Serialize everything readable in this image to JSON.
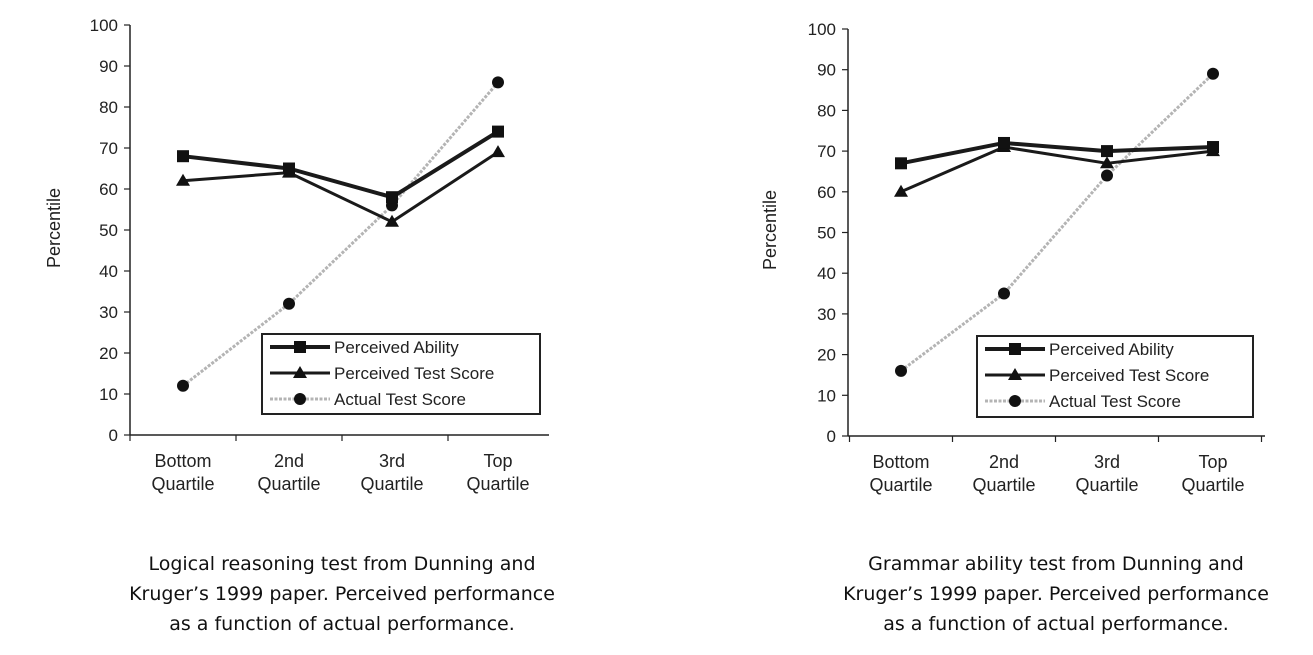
{
  "chart_data": [
    {
      "type": "line",
      "ylabel": "Percentile",
      "ylim": [
        0,
        100
      ],
      "yticks": [
        "0",
        "10",
        "20",
        "30",
        "40",
        "50",
        "60",
        "70",
        "80",
        "90",
        "100"
      ],
      "categories": [
        [
          "Bottom",
          "Quartile"
        ],
        [
          "2nd",
          "Quartile"
        ],
        [
          "3rd",
          "Quartile"
        ],
        [
          "Top",
          "Quartile"
        ]
      ],
      "series": [
        {
          "name": "Perceived Ability",
          "marker": "square",
          "values": [
            68,
            65,
            58,
            74
          ]
        },
        {
          "name": "Perceived Test Score",
          "marker": "triangle",
          "values": [
            62,
            64,
            52,
            69
          ]
        },
        {
          "name": "Actual Test Score",
          "marker": "circle",
          "values": [
            12,
            32,
            56,
            86
          ]
        }
      ],
      "legend_position": "bottom-right",
      "grid": false
    },
    {
      "type": "line",
      "ylabel": "Percentile",
      "ylim": [
        0,
        100
      ],
      "yticks": [
        "0",
        "10",
        "20",
        "30",
        "40",
        "50",
        "60",
        "70",
        "80",
        "90",
        "100"
      ],
      "categories": [
        [
          "Bottom",
          "Quartile"
        ],
        [
          "2nd",
          "Quartile"
        ],
        [
          "3rd",
          "Quartile"
        ],
        [
          "Top",
          "Quartile"
        ]
      ],
      "series": [
        {
          "name": "Perceived Ability",
          "marker": "square",
          "values": [
            67,
            72,
            70,
            71
          ]
        },
        {
          "name": "Perceived Test Score",
          "marker": "triangle",
          "values": [
            60,
            71,
            67,
            70
          ]
        },
        {
          "name": "Actual Test Score",
          "marker": "circle",
          "values": [
            16,
            35,
            64,
            89
          ]
        }
      ],
      "legend_position": "bottom-right",
      "grid": false
    }
  ],
  "captions": {
    "left": [
      "Logical reasoning test from Dunning and",
      "Kruger’s 1999 paper. Perceived performance",
      "as a function of actual performance."
    ],
    "right": [
      "Grammar ability test from Dunning and",
      "Kruger’s 1999 paper. Perceived performance",
      "as a function of actual performance."
    ]
  },
  "colors": {
    "perceived_lines": "#1a1a1a",
    "actual_line": "#b4b4b4",
    "marker": "#111111",
    "axis": "#222222"
  }
}
